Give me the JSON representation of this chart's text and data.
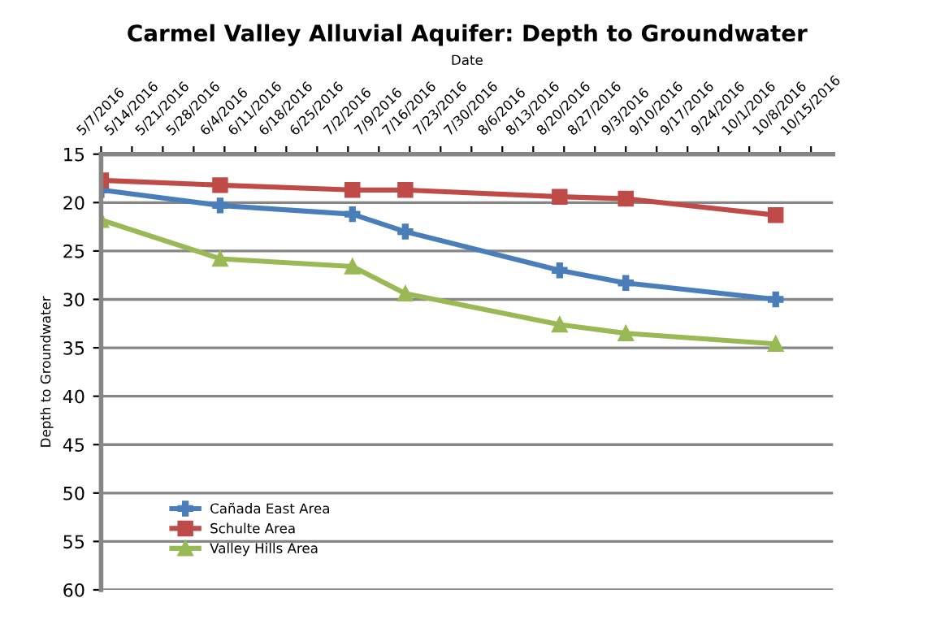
{
  "chart_data": {
    "type": "line",
    "title": "Carmel Valley Alluvial Aquifer: Depth to Groundwater",
    "xlabel": "Date",
    "ylabel": "Depth to Groundwater",
    "x": [
      "2016-05-07",
      "2016-06-03",
      "2016-07-03",
      "2016-07-15",
      "2016-08-19",
      "2016-09-03",
      "2016-10-07"
    ],
    "xlim": [
      "2016-05-07",
      "2016-10-20"
    ],
    "xticks": [
      {
        "value": "2016-05-07",
        "label": "5/7/2016"
      },
      {
        "value": "2016-05-14",
        "label": "5/14/2016"
      },
      {
        "value": "2016-05-21",
        "label": "5/21/2016"
      },
      {
        "value": "2016-05-28",
        "label": "5/28/2016"
      },
      {
        "value": "2016-06-04",
        "label": "6/4/2016"
      },
      {
        "value": "2016-06-11",
        "label": "6/11/2016"
      },
      {
        "value": "2016-06-18",
        "label": "6/18/2016"
      },
      {
        "value": "2016-06-25",
        "label": "6/25/2016"
      },
      {
        "value": "2016-07-02",
        "label": "7/2/2016"
      },
      {
        "value": "2016-07-09",
        "label": "7/9/2016"
      },
      {
        "value": "2016-07-16",
        "label": "7/16/2016"
      },
      {
        "value": "2016-07-23",
        "label": "7/23/2016"
      },
      {
        "value": "2016-07-30",
        "label": "7/30/2016"
      },
      {
        "value": "2016-08-06",
        "label": "8/6/2016"
      },
      {
        "value": "2016-08-13",
        "label": "8/13/2016"
      },
      {
        "value": "2016-08-20",
        "label": "8/20/2016"
      },
      {
        "value": "2016-08-27",
        "label": "8/27/2016"
      },
      {
        "value": "2016-09-03",
        "label": "9/3/2016"
      },
      {
        "value": "2016-09-10",
        "label": "9/10/2016"
      },
      {
        "value": "2016-09-17",
        "label": "9/17/2016"
      },
      {
        "value": "2016-09-24",
        "label": "9/24/2016"
      },
      {
        "value": "2016-10-01",
        "label": "10/1/2016"
      },
      {
        "value": "2016-10-08",
        "label": "10/8/2016"
      },
      {
        "value": "2016-10-15",
        "label": "10/15/2016"
      }
    ],
    "ylim": [
      60,
      15
    ],
    "yticks": [
      15,
      20,
      25,
      30,
      35,
      40,
      45,
      50,
      55,
      60
    ],
    "grid": "y",
    "legend": "bottom left",
    "series": [
      {
        "name": "Cañada East Area",
        "color": "#4a7ebb",
        "marker": "cross",
        "values": [
          18.7,
          20.3,
          21.2,
          23.0,
          27.0,
          28.3,
          30.0
        ]
      },
      {
        "name": "Schulte Area",
        "color": "#be4b48",
        "marker": "square",
        "values": [
          17.7,
          18.2,
          18.7,
          18.7,
          19.4,
          19.6,
          21.3
        ]
      },
      {
        "name": "Valley Hills Area",
        "color": "#98b954",
        "marker": "triangle",
        "values": [
          21.8,
          25.8,
          26.6,
          29.4,
          32.6,
          33.5,
          34.6
        ]
      }
    ]
  }
}
